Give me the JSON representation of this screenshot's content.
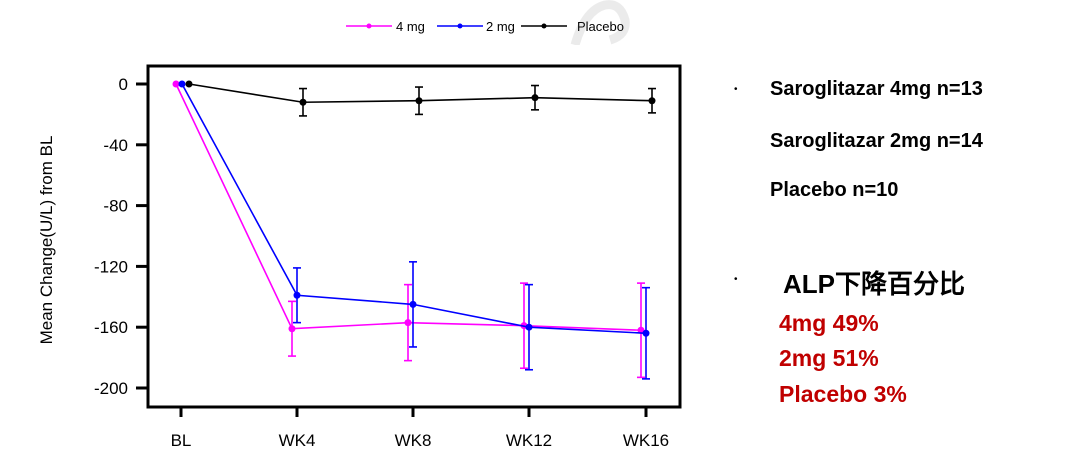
{
  "chart_data": {
    "type": "line",
    "title": "",
    "xlabel": "",
    "ylabel": "Mean Change(U/L) from BL",
    "categories": [
      "BL",
      "WK4",
      "WK8",
      "WK12",
      "WK16"
    ],
    "yticks": [
      0,
      -40,
      -80,
      -120,
      -160,
      -200
    ],
    "ytick_labels": [
      "0",
      "-40",
      "-80",
      "-120",
      "-160",
      "-200"
    ],
    "ylim": [
      -212,
      12
    ],
    "grid": false,
    "legend": {
      "placement": "top-center",
      "entries": [
        "4 mg",
        "2 mg",
        "Placebo"
      ]
    },
    "series": [
      {
        "name": "4 mg",
        "color": "#FF00FF",
        "values": [
          0,
          -161,
          -157,
          -159,
          -162
        ],
        "error": [
          0,
          18,
          25,
          28,
          31
        ]
      },
      {
        "name": "2 mg",
        "color": "#0000FF",
        "values": [
          0,
          -139,
          -145,
          -160,
          -164
        ],
        "error": [
          0,
          18,
          28,
          28,
          30
        ]
      },
      {
        "name": "Placebo",
        "color": "#000000",
        "values": [
          0,
          -12,
          -11,
          -9,
          -11
        ],
        "error": [
          0,
          9,
          9,
          8,
          8
        ]
      }
    ]
  },
  "notes": {
    "bullet": "•",
    "lines": [
      "Saroglitazar 4mg n=13",
      "Saroglitazar 2mg n=14",
      "Placebo n=10"
    ]
  },
  "alp": {
    "bullet": "•",
    "title": "ALP下降百分比",
    "lines": [
      "4mg 49%",
      "2mg  51%",
      "Placebo  3%"
    ],
    "color": "#C00000"
  }
}
